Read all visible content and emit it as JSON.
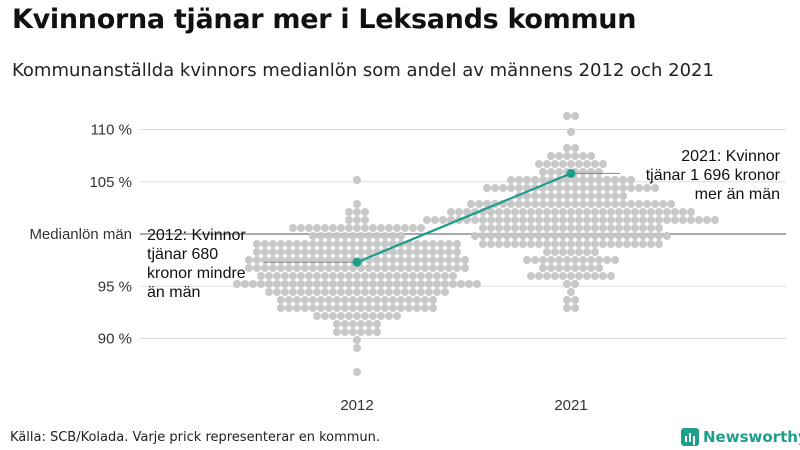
{
  "chart_data": {
    "type": "scatter",
    "title": "Kvinnorna tjänar mer i Leksands kommun",
    "subtitle": "Kommunanställda kvinnors medianlön som andel av männens 2012 och 2021",
    "categories": [
      "2012",
      "2021"
    ],
    "ylim": [
      86,
      112
    ],
    "y_ticks": [
      {
        "value": 90,
        "label": "90 %"
      },
      {
        "value": 95,
        "label": "95 %"
      },
      {
        "value": 105,
        "label": "105 %"
      },
      {
        "value": 110,
        "label": "110 %"
      }
    ],
    "reference_line": {
      "value": 100,
      "label": "Medianlön män"
    },
    "grid": true,
    "series": [
      {
        "category": "2012",
        "distribution": {
          "min": 86.5,
          "max": 105.2,
          "mean": 96.2,
          "sd": 2.8,
          "count": 290
        }
      },
      {
        "category": "2021",
        "distribution": {
          "min": 92.7,
          "max": 111.3,
          "mean": 101.8,
          "sd": 2.8,
          "count": 290
        }
      }
    ],
    "highlight": {
      "name": "Leksand",
      "color": "#1f9e8c",
      "points": [
        {
          "category": "2012",
          "value": 97.3
        },
        {
          "category": "2021",
          "value": 105.8
        }
      ]
    },
    "annotations": [
      {
        "category": "2012",
        "lines": [
          "2012: Kvinnor",
          "tjänar 680",
          "kronor mindre",
          "än män"
        ]
      },
      {
        "category": "2021",
        "lines": [
          "2021: Kvinnor",
          "tjänar 1 696 kronor",
          "mer än män"
        ]
      }
    ],
    "colors": {
      "dots": "#c8c8c8",
      "grid": "#dddddd",
      "reference": "#555555"
    }
  },
  "source": "Källa: SCB/Kolada. Varje prick representerar en kommun.",
  "brand": "Newsworthy"
}
